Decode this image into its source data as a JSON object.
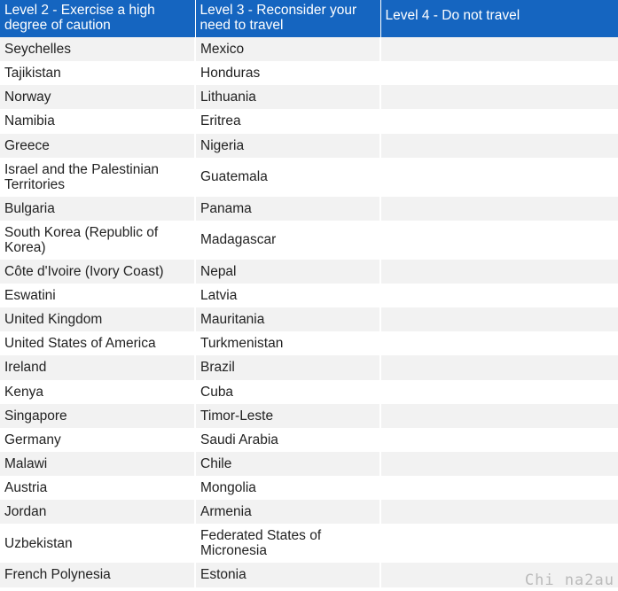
{
  "headers": [
    "Level 2 - Exercise a high degree of caution",
    "Level 3 - Reconsider your need to travel",
    "Level 4 - Do not travel"
  ],
  "rows": [
    [
      "Seychelles",
      "Mexico",
      ""
    ],
    [
      "Tajikistan",
      "Honduras",
      ""
    ],
    [
      "Norway",
      "Lithuania",
      ""
    ],
    [
      "Namibia",
      "Eritrea",
      ""
    ],
    [
      "Greece",
      "Nigeria",
      ""
    ],
    [
      "Israel and the Palestinian Territories",
      "Guatemala",
      ""
    ],
    [
      "Bulgaria",
      "Panama",
      ""
    ],
    [
      "South Korea (Republic of Korea)",
      "Madagascar",
      ""
    ],
    [
      "Côte d'Ivoire (Ivory Coast)",
      "Nepal",
      ""
    ],
    [
      "Eswatini",
      "Latvia",
      ""
    ],
    [
      "United Kingdom",
      "Mauritania",
      ""
    ],
    [
      "United States of America",
      "Turkmenistan",
      ""
    ],
    [
      "Ireland",
      "Brazil",
      ""
    ],
    [
      "Kenya",
      "Cuba",
      ""
    ],
    [
      "Singapore",
      "Timor-Leste",
      ""
    ],
    [
      "Germany",
      "Saudi Arabia",
      ""
    ],
    [
      "Malawi",
      "Chile",
      ""
    ],
    [
      "Austria",
      "Mongolia",
      ""
    ],
    [
      "Jordan",
      "Armenia",
      ""
    ],
    [
      "Uzbekistan",
      "Federated States of Micronesia",
      ""
    ],
    [
      "French Polynesia",
      "Estonia",
      ""
    ]
  ],
  "watermark": "Chi na2au",
  "colors": {
    "header_bg": "#1565c0",
    "row_alt_bg": "#f2f2f2"
  }
}
